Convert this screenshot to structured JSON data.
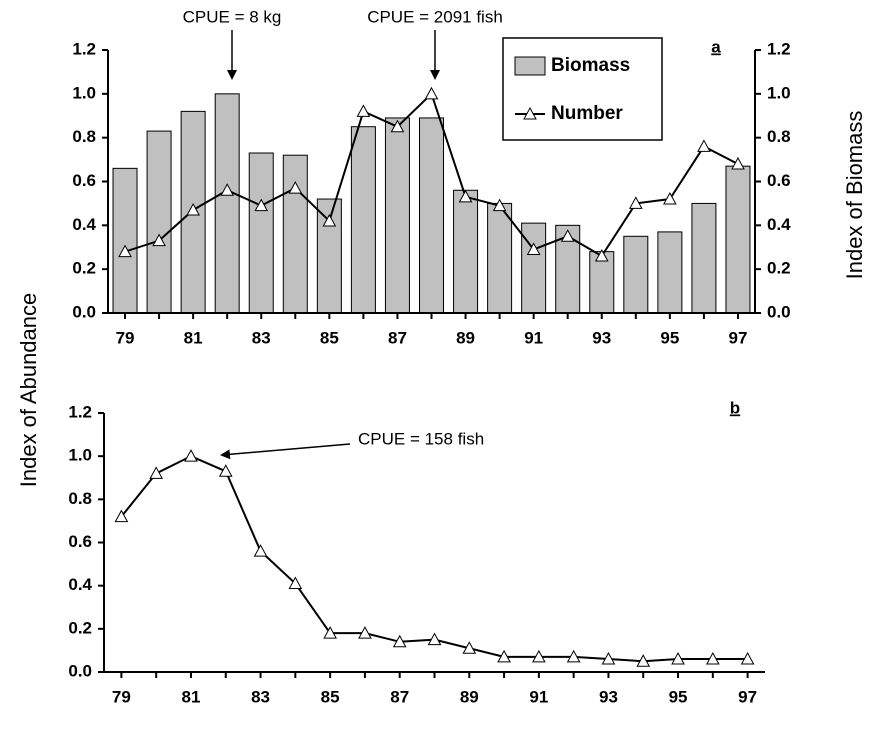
{
  "chart_data": [
    {
      "type": "bar",
      "ylabel": "Index of Abundance",
      "y2label": "Index of Biomass",
      "panel_label": "a",
      "annotations": [
        "CPUE = 8 kg",
        "CPUE = 2091 fish"
      ],
      "categories": [
        "79",
        null,
        "81",
        null,
        "83",
        null,
        "85",
        null,
        "87",
        null,
        "89",
        null,
        "91",
        null,
        "93",
        null,
        "95",
        null,
        "97"
      ],
      "series": [
        {
          "name": "Biomass",
          "type": "bar",
          "axis": "y2",
          "color": "#c0c0c0",
          "values": [
            0.66,
            0.83,
            0.92,
            1.0,
            0.73,
            0.72,
            0.52,
            0.85,
            0.89,
            0.89,
            0.56,
            0.5,
            0.41,
            0.4,
            0.28,
            0.35,
            0.37,
            0.5,
            0.67
          ]
        },
        {
          "name": "Number",
          "type": "line",
          "color": "#000000",
          "values": [
            0.28,
            0.33,
            0.47,
            0.56,
            0.49,
            0.57,
            0.42,
            0.92,
            0.85,
            1.0,
            0.53,
            0.49,
            0.29,
            0.35,
            0.26,
            0.5,
            0.52,
            0.76,
            0.68
          ]
        }
      ],
      "ylim": [
        0,
        1.2
      ],
      "yticks": [
        {
          "value": 0,
          "label": "0.0"
        },
        0.2,
        0.4,
        0.6,
        0.8,
        {
          "value": 1,
          "label": "1.0"
        },
        1.2
      ],
      "y2lim": [
        0,
        1.2
      ],
      "y2ticks": [
        {
          "value": 0,
          "label": "0.0"
        },
        0.2,
        0.4,
        0.6,
        0.8,
        {
          "value": 1,
          "label": "1.0"
        },
        1.2
      ],
      "legend": "top-right"
    },
    {
      "type": "line",
      "panel_label": "b",
      "annotations": [
        "CPUE = 158 fish"
      ],
      "categories": [
        "79",
        null,
        "81",
        null,
        "83",
        null,
        "85",
        null,
        "87",
        null,
        "89",
        null,
        "91",
        null,
        "93",
        null,
        "95",
        null,
        "97"
      ],
      "series": [
        {
          "name": "Number",
          "type": "line",
          "color": "#000000",
          "values": [
            0.72,
            0.92,
            1.0,
            0.93,
            0.56,
            0.41,
            0.18,
            0.18,
            0.14,
            0.15,
            0.11,
            0.07,
            0.07,
            0.07,
            0.06,
            0.05,
            0.06,
            0.06,
            0.06
          ]
        }
      ],
      "ylim": [
        0,
        1.2
      ],
      "yticks": [
        {
          "value": 0,
          "label": "0.0"
        },
        0.2,
        0.4,
        0.6,
        0.8,
        {
          "value": 1,
          "label": "1.0"
        },
        1.2
      ]
    }
  ]
}
